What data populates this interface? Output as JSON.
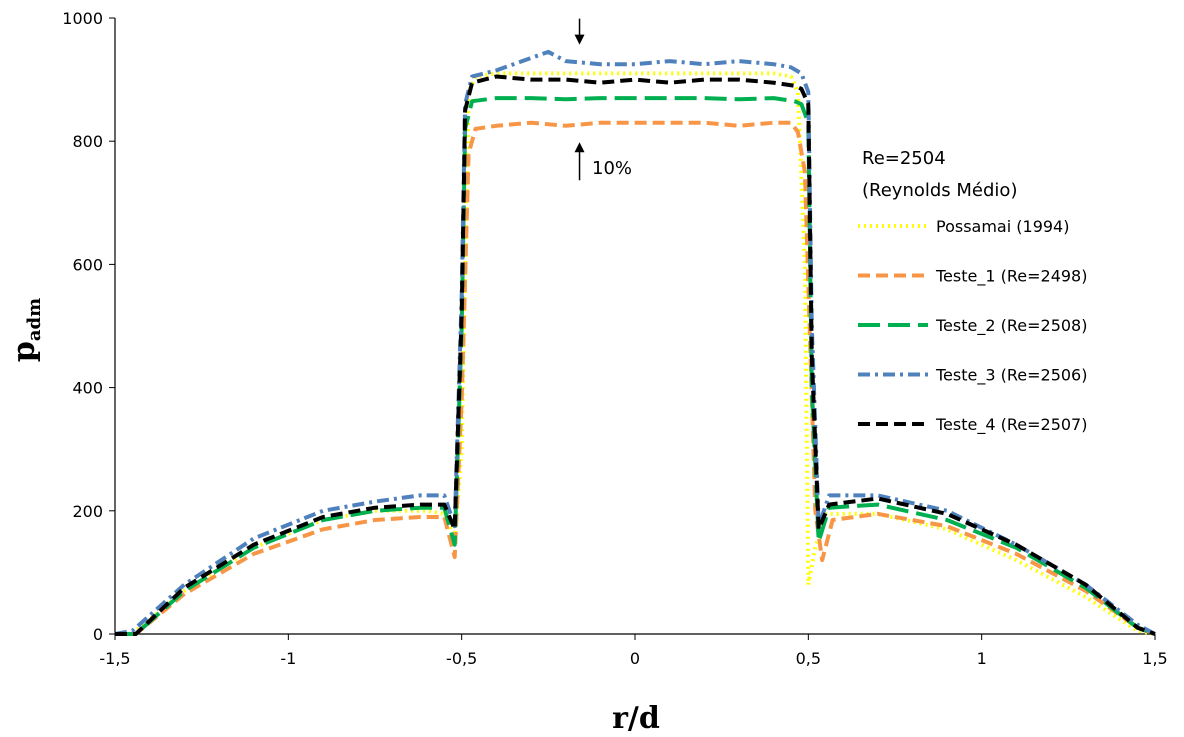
{
  "chart_data": {
    "type": "line",
    "xlabel": "r/d",
    "ylabel_main": "p",
    "ylabel_sub": "adm",
    "xlim": [
      -1.5,
      1.5
    ],
    "ylim": [
      0,
      1000
    ],
    "xticks": [
      {
        "value": -1.5,
        "label": "-1,5"
      },
      {
        "value": -1.0,
        "label": "-1"
      },
      {
        "value": -0.5,
        "label": "-0,5"
      },
      {
        "value": 0.0,
        "label": "0"
      },
      {
        "value": 0.5,
        "label": "0,5"
      },
      {
        "value": 1.0,
        "label": "1"
      },
      {
        "value": 1.5,
        "label": "1,5"
      }
    ],
    "yticks": [
      {
        "value": 0,
        "label": "0"
      },
      {
        "value": 200,
        "label": "200"
      },
      {
        "value": 400,
        "label": "400"
      },
      {
        "value": 600,
        "label": "600"
      },
      {
        "value": 800,
        "label": "800"
      },
      {
        "value": 1000,
        "label": "1000"
      }
    ],
    "grid": false,
    "legend_position": "right",
    "annotations": {
      "re_line1": "Re=2504",
      "re_line2": "(Reynolds Médio)",
      "percent_label": "10%",
      "arrow_down_at": [
        -0.16,
        960
      ],
      "arrow_up_at": [
        -0.16,
        795
      ]
    },
    "series": [
      {
        "name": "Possamai (1994)",
        "color": "#FFFF00",
        "dash": "dot",
        "x": [
          -1.5,
          -1.45,
          -1.3,
          -1.1,
          -0.9,
          -0.75,
          -0.6,
          -0.55,
          -0.52,
          -0.5,
          -0.48,
          -0.46,
          -0.4,
          -0.2,
          0.0,
          0.2,
          0.4,
          0.45,
          0.47,
          0.49,
          0.5,
          0.52,
          0.55,
          0.7,
          0.9,
          1.1,
          1.3,
          1.45,
          1.5
        ],
        "y": [
          0,
          0,
          70,
          140,
          185,
          200,
          200,
          195,
          155,
          300,
          880,
          905,
          910,
          910,
          910,
          910,
          910,
          905,
          880,
          600,
          80,
          140,
          195,
          195,
          170,
          120,
          60,
          5,
          0
        ]
      },
      {
        "name": "Teste_1 (Re=2498)",
        "color": "#F79646",
        "dash": "dash",
        "x": [
          -1.5,
          -1.44,
          -1.3,
          -1.1,
          -0.9,
          -0.75,
          -0.62,
          -0.55,
          -0.52,
          -0.5,
          -0.48,
          -0.46,
          -0.4,
          -0.3,
          -0.2,
          -0.1,
          0.0,
          0.1,
          0.2,
          0.3,
          0.4,
          0.45,
          0.47,
          0.49,
          0.52,
          0.54,
          0.57,
          0.7,
          0.9,
          1.1,
          1.3,
          1.45,
          1.5
        ],
        "y": [
          0,
          0,
          65,
          130,
          170,
          185,
          190,
          190,
          125,
          380,
          780,
          820,
          825,
          830,
          825,
          830,
          830,
          830,
          830,
          825,
          830,
          830,
          815,
          750,
          200,
          120,
          185,
          195,
          175,
          130,
          70,
          10,
          0
        ],
        "labels": []
      },
      {
        "name": "Teste_2 (Re=2508)",
        "color": "#00B050",
        "dash": "longdash",
        "x": [
          -1.5,
          -1.44,
          -1.3,
          -1.1,
          -0.9,
          -0.75,
          -0.62,
          -0.55,
          -0.52,
          -0.5,
          -0.49,
          -0.47,
          -0.4,
          -0.3,
          -0.2,
          -0.1,
          0.0,
          0.1,
          0.2,
          0.3,
          0.4,
          0.46,
          0.48,
          0.5,
          0.51,
          0.53,
          0.56,
          0.7,
          0.9,
          1.1,
          1.3,
          1.45,
          1.5
        ],
        "y": [
          0,
          0,
          70,
          140,
          185,
          200,
          205,
          205,
          145,
          500,
          820,
          865,
          870,
          870,
          868,
          870,
          870,
          870,
          870,
          868,
          870,
          865,
          860,
          830,
          400,
          150,
          205,
          210,
          185,
          140,
          75,
          10,
          0
        ]
      },
      {
        "name": "Teste_3 (Re=2506)",
        "color": "#4F81BD",
        "dash": "dashdot",
        "x": [
          -1.5,
          -1.45,
          -1.3,
          -1.1,
          -0.9,
          -0.75,
          -0.62,
          -0.55,
          -0.52,
          -0.5,
          -0.49,
          -0.47,
          -0.4,
          -0.3,
          -0.25,
          -0.2,
          -0.1,
          0.0,
          0.1,
          0.2,
          0.3,
          0.4,
          0.45,
          0.48,
          0.5,
          0.51,
          0.53,
          0.56,
          0.7,
          0.9,
          1.1,
          1.3,
          1.45,
          1.5
        ],
        "y": [
          0,
          5,
          80,
          155,
          200,
          215,
          225,
          225,
          175,
          550,
          860,
          905,
          915,
          935,
          945,
          930,
          925,
          925,
          930,
          925,
          930,
          925,
          920,
          910,
          880,
          500,
          175,
          225,
          225,
          200,
          145,
          80,
          15,
          0
        ]
      },
      {
        "name": "Teste_4 (Re=2507)",
        "color": "#000000",
        "dash": "dash",
        "x": [
          -1.5,
          -1.44,
          -1.3,
          -1.1,
          -0.9,
          -0.75,
          -0.62,
          -0.55,
          -0.52,
          -0.5,
          -0.49,
          -0.47,
          -0.4,
          -0.3,
          -0.2,
          -0.1,
          0.0,
          0.1,
          0.2,
          0.3,
          0.4,
          0.46,
          0.48,
          0.5,
          0.51,
          0.53,
          0.56,
          0.7,
          0.9,
          1.1,
          1.3,
          1.45,
          1.5
        ],
        "y": [
          0,
          0,
          75,
          145,
          190,
          205,
          210,
          210,
          170,
          520,
          850,
          895,
          905,
          900,
          900,
          895,
          900,
          895,
          900,
          900,
          895,
          890,
          885,
          860,
          450,
          170,
          210,
          220,
          195,
          145,
          80,
          10,
          0
        ]
      }
    ]
  }
}
